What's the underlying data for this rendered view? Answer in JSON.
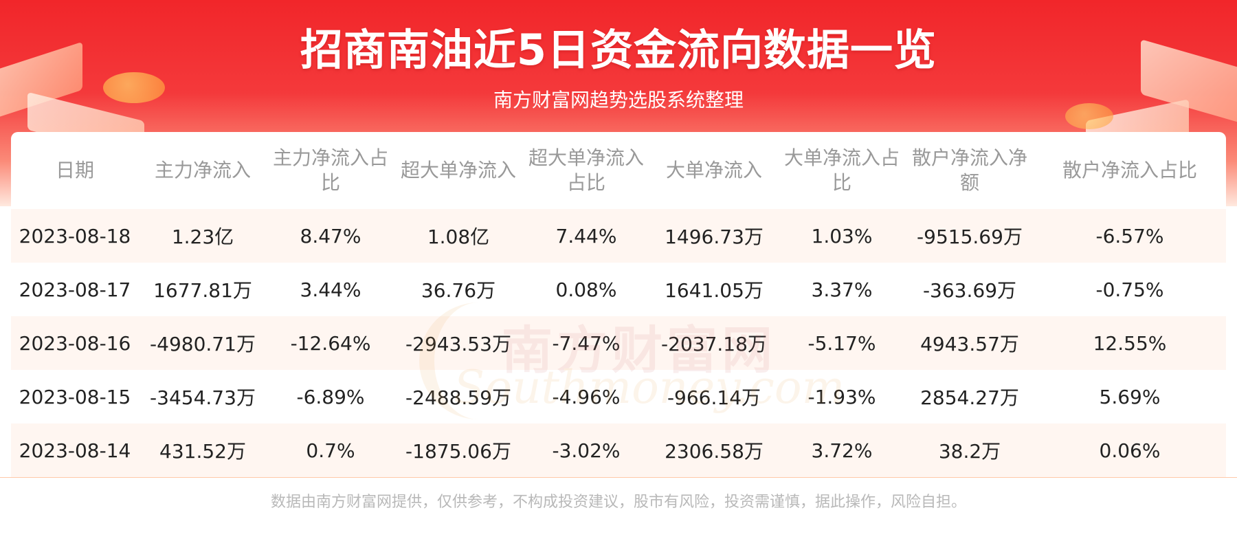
{
  "header": {
    "title": "招商南油近5日资金流向数据一览",
    "subtitle": "南方财富网趋势选股系统整理"
  },
  "watermark": {
    "cn": "南方财富网",
    "en": "Southmoney.com"
  },
  "chart_data": {
    "type": "table",
    "columns": [
      "日期",
      "主力净流入",
      "主力净流入占比",
      "超大单净流入",
      "超大单净流入占比",
      "大单净流入",
      "大单净流入占比",
      "散户净流入净额",
      "散户净流入占比"
    ],
    "rows": [
      [
        "2023-08-18",
        "1.23亿",
        "8.47%",
        "1.08亿",
        "7.44%",
        "1496.73万",
        "1.03%",
        "-9515.69万",
        "-6.57%"
      ],
      [
        "2023-08-17",
        "1677.81万",
        "3.44%",
        "36.76万",
        "0.08%",
        "1641.05万",
        "3.37%",
        "-363.69万",
        "-0.75%"
      ],
      [
        "2023-08-16",
        "-4980.71万",
        "-12.64%",
        "-2943.53万",
        "-7.47%",
        "-2037.18万",
        "-5.17%",
        "4943.57万",
        "12.55%"
      ],
      [
        "2023-08-15",
        "-3454.73万",
        "-6.89%",
        "-2488.59万",
        "-4.96%",
        "-966.14万",
        "-1.93%",
        "2854.27万",
        "5.69%"
      ],
      [
        "2023-08-14",
        "431.52万",
        "0.7%",
        "-1875.06万",
        "-3.02%",
        "2306.58万",
        "3.72%",
        "38.2万",
        "0.06%"
      ]
    ]
  },
  "footer": {
    "disclaimer": "数据由南方财富网提供，仅供参考，不构成投资建议，股市有风险，投资需谨慎，据此操作，风险自担。"
  }
}
